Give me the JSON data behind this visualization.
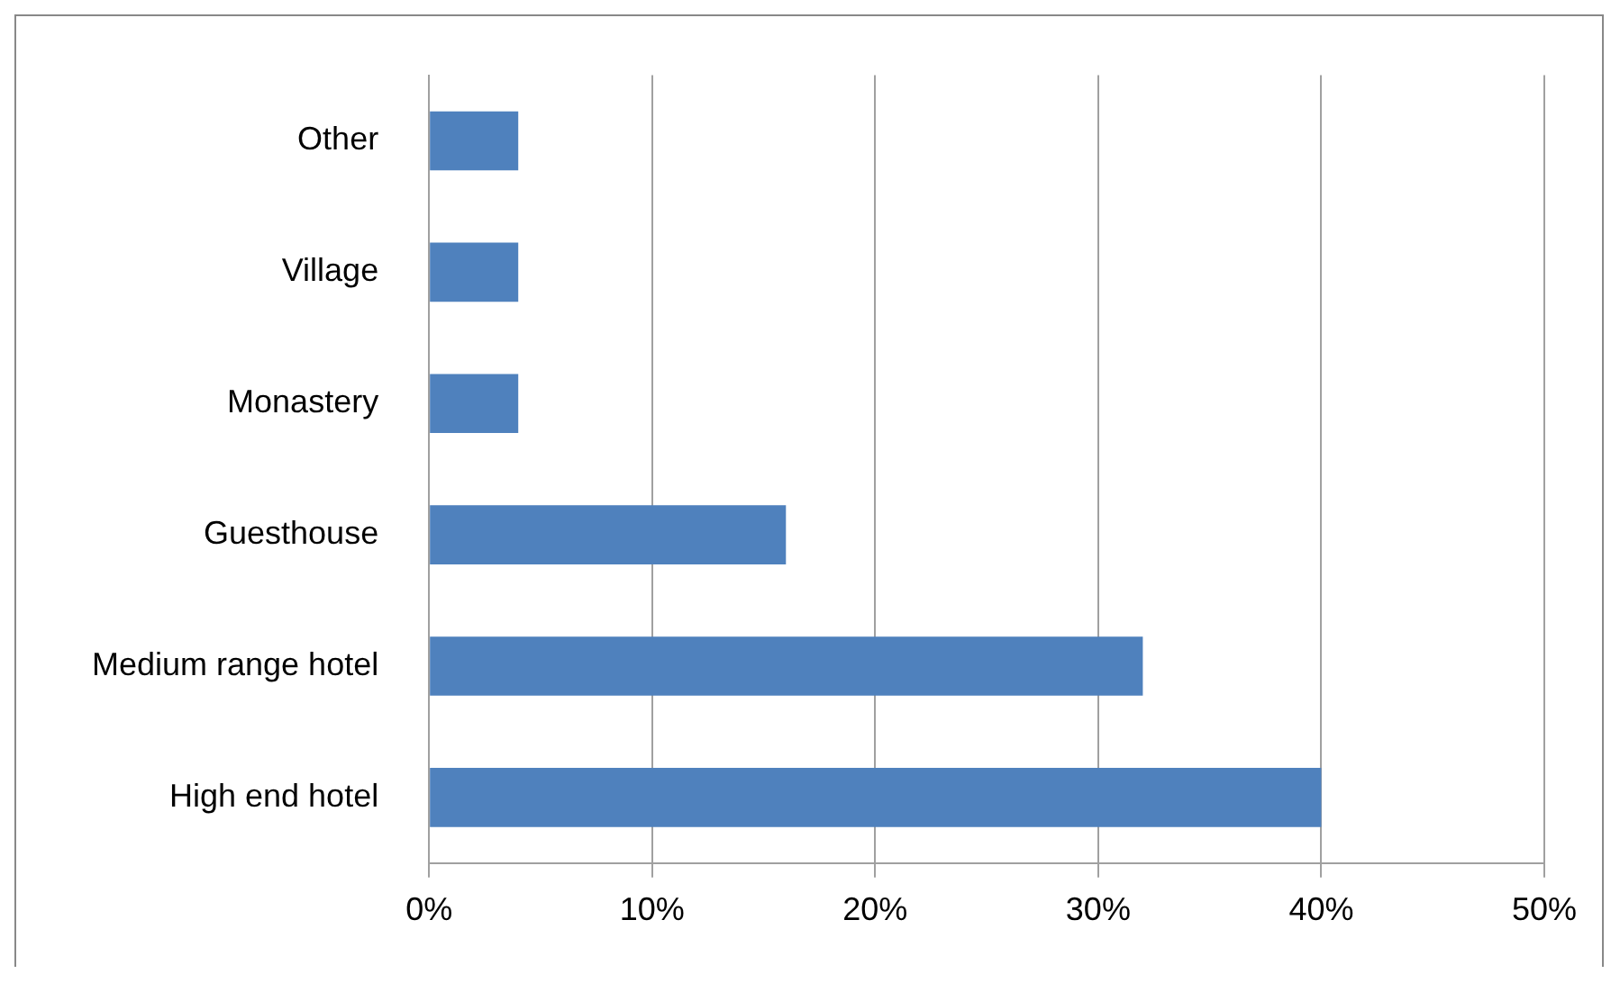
{
  "chart_data": {
    "type": "bar",
    "orientation": "horizontal",
    "categories": [
      "Other",
      "Village",
      "Monastery",
      "Guesthouse",
      "Medium range hotel",
      "High end hotel"
    ],
    "values": [
      4,
      4,
      4,
      16,
      32,
      40
    ],
    "color": "#4f81bd",
    "xlim": [
      0,
      50
    ],
    "xticks": [
      {
        "value": 0,
        "label": "0%"
      },
      {
        "value": 10,
        "label": "10%"
      },
      {
        "value": 20,
        "label": "20%"
      },
      {
        "value": 30,
        "label": "30%"
      },
      {
        "value": 40,
        "label": "40%"
      },
      {
        "value": 50,
        "label": "50%"
      }
    ],
    "grid": "x",
    "legend": false
  }
}
